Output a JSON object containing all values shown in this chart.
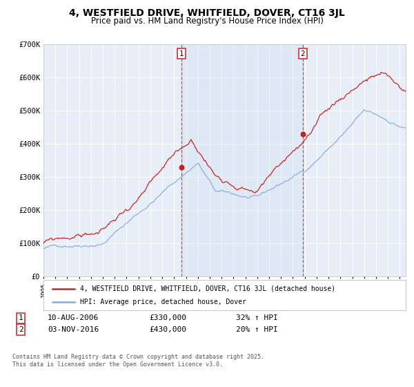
{
  "title": "4, WESTFIELD DRIVE, WHITFIELD, DOVER, CT16 3JL",
  "subtitle": "Price paid vs. HM Land Registry's House Price Index (HPI)",
  "background_color": "#ffffff",
  "plot_bg_color": "#e8eef8",
  "grid_color": "#ffffff",
  "hpi_color": "#88aadd",
  "price_color": "#cc2222",
  "ylim": [
    0,
    700000
  ],
  "xlim_start": 1995.0,
  "xlim_end": 2025.5,
  "marker1_x": 2006.61,
  "marker1_y": 330000,
  "marker1_label": "1",
  "marker2_x": 2016.84,
  "marker2_y": 430000,
  "marker2_label": "2",
  "annotation1_date": "10-AUG-2006",
  "annotation1_price": "£330,000",
  "annotation1_hpi": "32% ↑ HPI",
  "annotation2_date": "03-NOV-2016",
  "annotation2_price": "£430,000",
  "annotation2_hpi": "20% ↑ HPI",
  "legend_line1": "4, WESTFIELD DRIVE, WHITFIELD, DOVER, CT16 3JL (detached house)",
  "legend_line2": "HPI: Average price, detached house, Dover",
  "footer": "Contains HM Land Registry data © Crown copyright and database right 2025.\nThis data is licensed under the Open Government Licence v3.0.",
  "yticks": [
    0,
    100000,
    200000,
    300000,
    400000,
    500000,
    600000,
    700000
  ],
  "ytick_labels": [
    "£0",
    "£100K",
    "£200K",
    "£300K",
    "£400K",
    "£500K",
    "£600K",
    "£700K"
  ]
}
